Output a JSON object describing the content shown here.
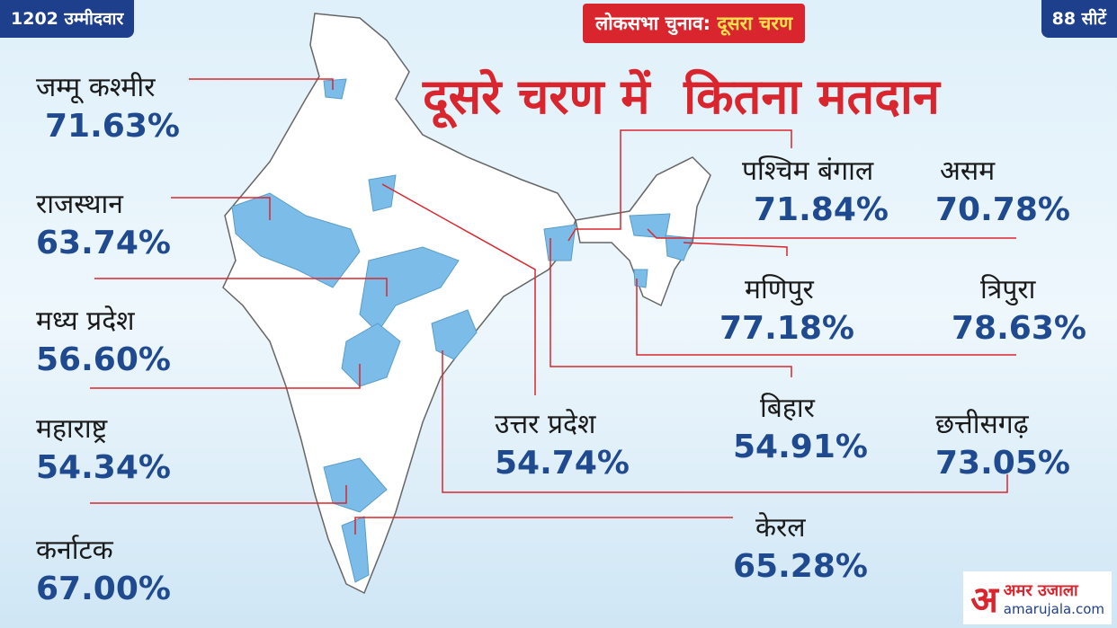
{
  "header": {
    "candidates": "1202 उम्मीदवार",
    "election": "लोकसभा चुनाव:",
    "phase": "दूसरा चरण",
    "seats": "88 सीटें",
    "title": "दूसरे चरण में  कितना मतदान"
  },
  "states": [
    {
      "name": "जम्मू कश्मीर",
      "turnout": "71.63%"
    },
    {
      "name": "राजस्थान",
      "turnout": "63.74%"
    },
    {
      "name": "मध्य प्रदेश",
      "turnout": "56.60%"
    },
    {
      "name": "महाराष्ट्र",
      "turnout": "54.34%"
    },
    {
      "name": "कर्नाटक",
      "turnout": "67.00%"
    },
    {
      "name": "उत्तर प्रदेश",
      "turnout": "54.74%"
    },
    {
      "name": "पश्चिम बंगाल",
      "turnout": "71.84%"
    },
    {
      "name": "असम",
      "turnout": "70.78%"
    },
    {
      "name": "मणिपुर",
      "turnout": "77.18%"
    },
    {
      "name": "त्रिपुरा",
      "turnout": "78.63%"
    },
    {
      "name": "बिहार",
      "turnout": "54.91%"
    },
    {
      "name": "छत्तीसगढ़",
      "turnout": "73.05%"
    },
    {
      "name": "केरल",
      "turnout": "65.28%"
    }
  ],
  "logo": {
    "mark": "अ",
    "name": "अमर उजाला",
    "site": "amarujala.com"
  }
}
